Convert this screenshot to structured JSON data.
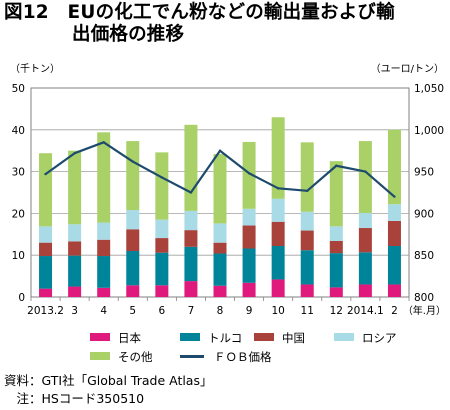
{
  "title_line1": "図12　EUの化工でん粉などの輸出量および輸",
  "title_line2": "出価格の推移",
  "source_line1": "資料：GTI社「Global Trade Atlas」",
  "source_line2": "　注：HSコード350510",
  "chart_data": {
    "type": "bar+line",
    "title": "図12　EUの化工でん粉などの輸出量および輸出価格の推移",
    "categories": [
      "2013.2",
      "3",
      "4",
      "5",
      "6",
      "7",
      "8",
      "9",
      "10",
      "11",
      "12",
      "2014.1",
      "2"
    ],
    "series": [
      {
        "name": "日本",
        "axis": "left",
        "color": "#e0197d",
        "values": [
          2.0,
          2.5,
          2.2,
          2.8,
          2.8,
          3.8,
          2.7,
          3.4,
          4.2,
          3.0,
          2.3,
          3.0,
          3.0
        ]
      },
      {
        "name": "トルコ",
        "axis": "left",
        "color": "#00849a",
        "values": [
          7.8,
          7.4,
          7.6,
          8.2,
          7.8,
          8.2,
          7.7,
          8.2,
          8.0,
          8.2,
          8.2,
          7.7,
          9.2
        ]
      },
      {
        "name": "中国",
        "axis": "left",
        "color": "#a8423b",
        "values": [
          3.2,
          3.4,
          3.9,
          5.2,
          3.5,
          4.0,
          2.6,
          5.5,
          5.8,
          4.7,
          2.9,
          5.8,
          6.0
        ]
      },
      {
        "name": "ロシア",
        "axis": "left",
        "color": "#a8dbe6",
        "values": [
          3.9,
          4.1,
          4.1,
          4.6,
          4.4,
          4.6,
          4.6,
          4.0,
          5.5,
          4.5,
          3.5,
          3.6,
          4.0
        ]
      },
      {
        "name": "その他",
        "axis": "left",
        "color": "#a9d168",
        "values": [
          17.5,
          17.6,
          21.6,
          16.5,
          16.1,
          20.6,
          16.6,
          16.0,
          19.5,
          16.6,
          15.6,
          17.2,
          17.8
        ]
      },
      {
        "name": "ＦＯＢ価格",
        "axis": "right",
        "type": "line",
        "color": "#1e4a6e",
        "values": [
          947,
          972,
          985,
          962,
          943,
          925,
          975,
          948,
          930,
          927,
          957,
          950,
          920
        ]
      }
    ],
    "y_left": {
      "label": "（千トン）",
      "min": 0,
      "max": 50,
      "ticks": [
        0,
        10,
        20,
        30,
        40,
        50
      ]
    },
    "y_right": {
      "label": "（ユーロ/トン）",
      "min": 800,
      "max": 1050,
      "ticks": [
        "800",
        "850",
        "900",
        "950",
        "1,000",
        "1,050"
      ]
    },
    "x_unit": "（年.月）",
    "grid": true,
    "legend_position": "bottom"
  }
}
